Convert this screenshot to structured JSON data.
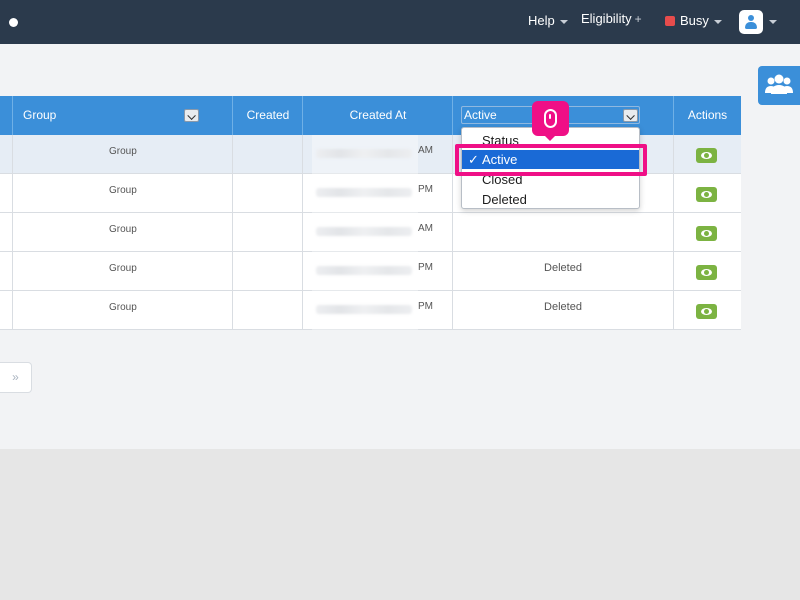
{
  "nav": {
    "help": "Help",
    "eligibility": "Eligibility",
    "status": "Busy"
  },
  "table": {
    "headers": {
      "group": "Group",
      "created": "Created",
      "created_at": "Created At",
      "active_filter": "Active",
      "actions": "Actions"
    },
    "rows": [
      {
        "group": "Group",
        "ampm": "AM",
        "status": ""
      },
      {
        "group": "Group",
        "ampm": "PM",
        "status": ""
      },
      {
        "group": "Group",
        "ampm": "AM",
        "status": ""
      },
      {
        "group": "Group",
        "ampm": "PM",
        "status": "Deleted"
      },
      {
        "group": "Group",
        "ampm": "PM",
        "status": "Deleted"
      }
    ]
  },
  "dropdown": {
    "options": [
      "Status",
      "Active",
      "Closed",
      "Deleted"
    ],
    "selected": "Active",
    "check": "✓"
  },
  "pager": {
    "next": "»"
  },
  "icons": {
    "nav_dot": "dot-icon",
    "avatar": "user-icon",
    "contacts": "users-icon",
    "view": "eye-icon",
    "mouse": "mouse-icon"
  },
  "colors": {
    "navbar": "#2b3a4c",
    "header": "#3b8fd9",
    "view_button": "#7cb342",
    "busy": "#e74c4c",
    "highlight": "#ef0f86",
    "selected_option": "#1a6ad6"
  }
}
